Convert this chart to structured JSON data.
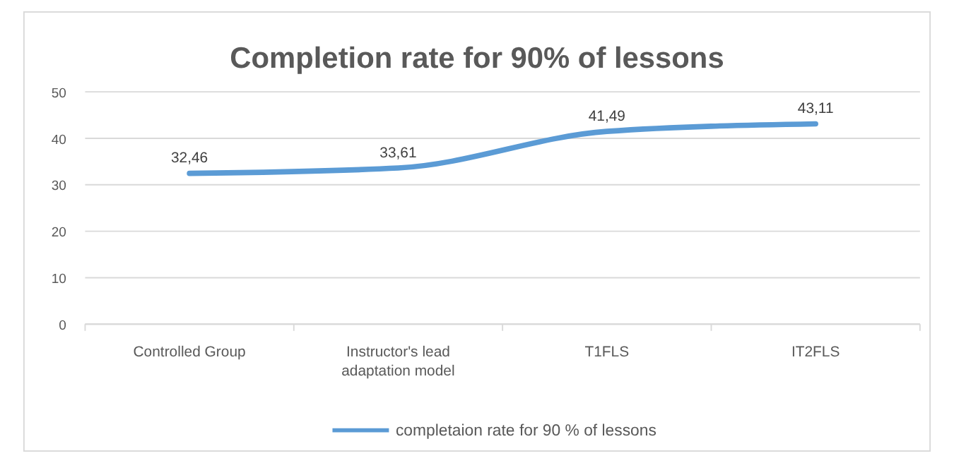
{
  "chart_data": {
    "type": "line",
    "title": "Completion rate for 90% of lessons",
    "categories": [
      "Controlled Group",
      "Instructor's lead adaptation model",
      "T1FLS",
      "IT2FLS"
    ],
    "series": [
      {
        "name": "completaion rate for 90 % of lessons",
        "color": "#5b9bd5",
        "values": [
          32.46,
          33.61,
          41.49,
          43.11
        ],
        "value_labels": [
          "32,46",
          "33,61",
          "41,49",
          "43,11"
        ]
      }
    ],
    "ylim": [
      0,
      50
    ],
    "yticks": [
      0,
      10,
      20,
      30,
      40,
      50
    ],
    "grid": "y",
    "legend": "bottom",
    "marker": "none",
    "line_style": "solid"
  }
}
